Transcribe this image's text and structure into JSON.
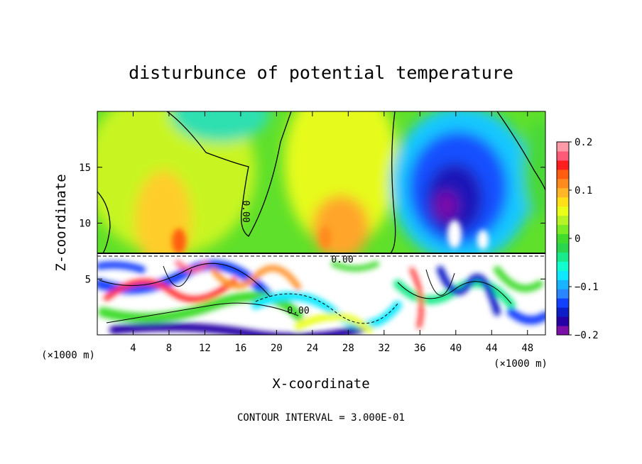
{
  "chart_data": {
    "type": "heatmap",
    "title": "disturbunce of potential temperature",
    "xlabel": "X-coordinate",
    "ylabel": "Z-coordinate",
    "x_unit_label": "(×1000 m)",
    "y_unit_label": "(×1000 m)",
    "xlim": [
      0,
      50
    ],
    "ylim": [
      0,
      20
    ],
    "x_ticks": [
      4,
      8,
      12,
      16,
      20,
      24,
      28,
      32,
      36,
      40,
      44,
      48
    ],
    "y_ticks": [
      5,
      10,
      15
    ],
    "colorbar": {
      "range": [
        -0.2,
        0.2
      ],
      "tick_values": [
        0.2,
        0.1,
        0,
        -0.1,
        -0.2
      ],
      "tick_labels": [
        "0.2",
        "0.1",
        "0",
        "−0.1",
        "−0.2"
      ],
      "colors": [
        "#7b0fa8",
        "#2600a6",
        "#0d1ec8",
        "#1240ff",
        "#2a86ff",
        "#18b4ff",
        "#10e8ff",
        "#12ffd0",
        "#19ea8b",
        "#2ad64d",
        "#3fdc2e",
        "#79ec25",
        "#b6f426",
        "#eaff18",
        "#ffdf18",
        "#ffb627",
        "#ff8a1d",
        "#ff5e10",
        "#ff1e1e",
        "#ff5a78",
        "#ff9ba8"
      ]
    },
    "contour_labels": [
      "0.00",
      "0.00",
      "0.00"
    ],
    "contour_interval": "CONTOUR INTERVAL = 3.000E-01",
    "regions": [
      {
        "desc": "upper layer background",
        "x": [
          0,
          50
        ],
        "z": [
          7.5,
          20
        ],
        "value": 0.05
      },
      {
        "desc": "warm anomaly",
        "x_center": 8,
        "z_center": 12,
        "value": 0.12
      },
      {
        "desc": "warm anomaly",
        "x_center": 26.5,
        "z_center": 11,
        "value": 0.12
      },
      {
        "desc": "cool anomaly",
        "x_center": 14,
        "z_center": 19,
        "value": -0.05
      },
      {
        "desc": "cold anomaly",
        "x_center": 39.5,
        "z_center": 14,
        "value": -0.17
      },
      {
        "desc": "noisy lower layer",
        "x": [
          0,
          50
        ],
        "z": [
          0,
          7.3
        ],
        "value_range": [
          -0.2,
          0.2
        ]
      }
    ]
  }
}
